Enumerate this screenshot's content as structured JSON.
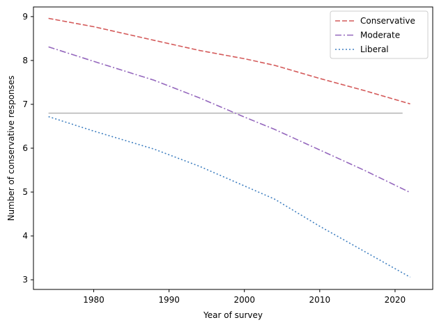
{
  "chart_data": {
    "type": "line",
    "xlabel": "Year of survey",
    "ylabel": "Number of conservative responses",
    "xlim": [
      1972,
      2025
    ],
    "ylim": [
      2.78,
      9.22
    ],
    "xticks": [
      1980,
      1990,
      2000,
      2010,
      2020
    ],
    "yticks": [
      3,
      4,
      5,
      6,
      7,
      8,
      9
    ],
    "grid": false,
    "legend_position": "top-right",
    "series": [
      {
        "name": "Conservative",
        "color": "#d45a5a",
        "style": "dashed",
        "x": [
          1974,
          1980,
          1988,
          1994,
          2000,
          2004,
          2010,
          2016,
          2022
        ],
        "y": [
          8.96,
          8.77,
          8.46,
          8.23,
          8.04,
          7.89,
          7.59,
          7.31,
          7.01
        ]
      },
      {
        "name": "Moderate",
        "color": "#9467bd",
        "style": "dashdot",
        "x": [
          1974,
          1980,
          1988,
          1994,
          2000,
          2004,
          2010,
          2016,
          2022
        ],
        "y": [
          8.31,
          7.98,
          7.55,
          7.15,
          6.71,
          6.43,
          5.96,
          5.49,
          4.99
        ]
      },
      {
        "name": "Liberal",
        "color": "#3f7fc0",
        "style": "dotted",
        "x": [
          1974,
          1980,
          1988,
          1994,
          2000,
          2004,
          2010,
          2016,
          2022
        ],
        "y": [
          6.72,
          6.39,
          5.98,
          5.59,
          5.14,
          4.84,
          4.22,
          3.64,
          3.06
        ]
      }
    ],
    "reference_line": {
      "color": "#b3b3b3",
      "x": [
        1974,
        2021
      ],
      "y": [
        6.8,
        6.8
      ]
    }
  }
}
